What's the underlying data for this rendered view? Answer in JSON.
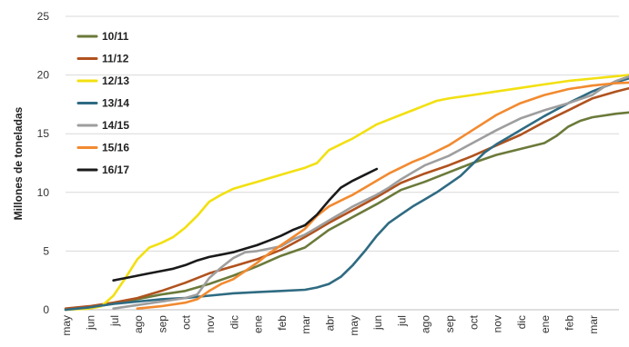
{
  "chart_data": {
    "type": "line",
    "ylabel": "Millones de toneladas",
    "ylim": [
      0,
      25
    ],
    "yticks": [
      0,
      5,
      10,
      15,
      20,
      25
    ],
    "grid": true,
    "legend_position": "top-left",
    "months": [
      "may",
      "jun",
      "jul",
      "ago",
      "sep",
      "oct",
      "nov",
      "dic",
      "ene",
      "feb",
      "mar",
      "abr",
      "may",
      "jun",
      "jul",
      "ago",
      "sep",
      "oct",
      "nov",
      "dic",
      "ene",
      "feb",
      "mar"
    ],
    "series": [
      {
        "name": "10/11",
        "color": "#6b7a3a",
        "points": [
          [
            0,
            0
          ],
          [
            1,
            0.2
          ],
          [
            2,
            0.5
          ],
          [
            3,
            0.9
          ],
          [
            4,
            1.3
          ],
          [
            5,
            1.6
          ],
          [
            6,
            2.2
          ],
          [
            7,
            2.9
          ],
          [
            8,
            3.7
          ],
          [
            9,
            4.6
          ],
          [
            10,
            5.3
          ],
          [
            11,
            6.8
          ],
          [
            12,
            7.9
          ],
          [
            13,
            9.0
          ],
          [
            14,
            10.2
          ],
          [
            15,
            10.9
          ],
          [
            16,
            11.7
          ],
          [
            17,
            12.5
          ],
          [
            18,
            13.2
          ],
          [
            19,
            13.7
          ],
          [
            20,
            14.2
          ],
          [
            20.5,
            14.8
          ],
          [
            21,
            15.6
          ],
          [
            21.5,
            16.1
          ],
          [
            22,
            16.4
          ],
          [
            23,
            16.7
          ],
          [
            24,
            16.9
          ]
        ]
      },
      {
        "name": "11/12",
        "color": "#b0521e",
        "points": [
          [
            0,
            0.1
          ],
          [
            1,
            0.3
          ],
          [
            2,
            0.6
          ],
          [
            3,
            1.0
          ],
          [
            4,
            1.6
          ],
          [
            5,
            2.3
          ],
          [
            6,
            3.1
          ],
          [
            7,
            3.7
          ],
          [
            8,
            4.3
          ],
          [
            9,
            5.1
          ],
          [
            10,
            6.2
          ],
          [
            11,
            7.4
          ],
          [
            12,
            8.5
          ],
          [
            13,
            9.6
          ],
          [
            14,
            10.8
          ],
          [
            15,
            11.6
          ],
          [
            16,
            12.3
          ],
          [
            17,
            13.1
          ],
          [
            18,
            14.0
          ],
          [
            19,
            14.9
          ],
          [
            20,
            16.0
          ],
          [
            21,
            17.0
          ],
          [
            22,
            18.0
          ],
          [
            23,
            18.6
          ],
          [
            24,
            19.1
          ],
          [
            25,
            19.4
          ],
          [
            26,
            19.5
          ]
        ]
      },
      {
        "name": "12/13",
        "color": "#f2e011",
        "points": [
          [
            0,
            0
          ],
          [
            1,
            0.1
          ],
          [
            1.5,
            0.3
          ],
          [
            2,
            1.2
          ],
          [
            2.5,
            2.7
          ],
          [
            3,
            4.3
          ],
          [
            3.5,
            5.3
          ],
          [
            4,
            5.7
          ],
          [
            4.5,
            6.2
          ],
          [
            5,
            7.0
          ],
          [
            5.5,
            8.0
          ],
          [
            6,
            9.2
          ],
          [
            6.5,
            9.8
          ],
          [
            7,
            10.3
          ],
          [
            7.5,
            10.6
          ],
          [
            8,
            10.9
          ],
          [
            8.5,
            11.2
          ],
          [
            9,
            11.5
          ],
          [
            9.5,
            11.8
          ],
          [
            10,
            12.1
          ],
          [
            10.5,
            12.5
          ],
          [
            11,
            13.6
          ],
          [
            11.5,
            14.1
          ],
          [
            12,
            14.6
          ],
          [
            12.5,
            15.2
          ],
          [
            13,
            15.8
          ],
          [
            13.5,
            16.2
          ],
          [
            14,
            16.6
          ],
          [
            14.5,
            17.0
          ],
          [
            15,
            17.4
          ],
          [
            15.5,
            17.8
          ],
          [
            16,
            18.0
          ],
          [
            17,
            18.3
          ],
          [
            18,
            18.6
          ],
          [
            19,
            18.9
          ],
          [
            20,
            19.2
          ],
          [
            21,
            19.5
          ],
          [
            22,
            19.7
          ],
          [
            23,
            19.9
          ],
          [
            24,
            20.1
          ],
          [
            25,
            20.2
          ],
          [
            26,
            20.3
          ]
        ]
      },
      {
        "name": "13/14",
        "color": "#2f6b82",
        "points": [
          [
            0,
            0
          ],
          [
            1,
            0.2
          ],
          [
            2,
            0.5
          ],
          [
            3,
            0.7
          ],
          [
            4,
            0.9
          ],
          [
            5,
            1.0
          ],
          [
            6,
            1.2
          ],
          [
            7,
            1.4
          ],
          [
            8,
            1.5
          ],
          [
            9,
            1.6
          ],
          [
            10,
            1.7
          ],
          [
            10.5,
            1.9
          ],
          [
            11,
            2.2
          ],
          [
            11.5,
            2.8
          ],
          [
            12,
            3.8
          ],
          [
            12.5,
            5.0
          ],
          [
            13,
            6.3
          ],
          [
            13.5,
            7.4
          ],
          [
            14,
            8.1
          ],
          [
            14.5,
            8.8
          ],
          [
            15,
            9.4
          ],
          [
            15.5,
            10.0
          ],
          [
            16,
            10.7
          ],
          [
            16.5,
            11.4
          ],
          [
            17,
            12.4
          ],
          [
            17.5,
            13.4
          ],
          [
            18,
            14.1
          ],
          [
            18.5,
            14.7
          ],
          [
            19,
            15.3
          ],
          [
            20,
            16.5
          ],
          [
            21,
            17.6
          ],
          [
            22,
            18.6
          ],
          [
            23,
            19.4
          ],
          [
            24,
            20.0
          ],
          [
            25,
            20.6
          ],
          [
            26,
            21.0
          ]
        ]
      },
      {
        "name": "14/15",
        "color": "#9e9e9e",
        "points": [
          [
            2,
            0.1
          ],
          [
            3,
            0.4
          ],
          [
            4,
            0.7
          ],
          [
            5,
            1.0
          ],
          [
            5.5,
            1.3
          ],
          [
            6,
            2.7
          ],
          [
            6.5,
            3.6
          ],
          [
            7,
            4.4
          ],
          [
            7.5,
            4.9
          ],
          [
            8,
            5.0
          ],
          [
            9,
            5.4
          ],
          [
            9.5,
            6.0
          ],
          [
            10,
            6.4
          ],
          [
            10.5,
            7.0
          ],
          [
            11,
            7.6
          ],
          [
            11.5,
            8.2
          ],
          [
            12,
            8.8
          ],
          [
            12.5,
            9.3
          ],
          [
            13,
            9.8
          ],
          [
            13.5,
            10.4
          ],
          [
            14,
            11.1
          ],
          [
            14.5,
            11.7
          ],
          [
            15,
            12.3
          ],
          [
            16,
            13.1
          ],
          [
            17,
            14.2
          ],
          [
            18,
            15.3
          ],
          [
            19,
            16.3
          ],
          [
            20,
            17.0
          ],
          [
            21,
            17.6
          ],
          [
            22,
            18.3
          ],
          [
            22.5,
            19.0
          ],
          [
            23,
            19.5
          ],
          [
            24,
            20.2
          ],
          [
            25,
            20.6
          ],
          [
            26,
            21.0
          ]
        ]
      },
      {
        "name": "15/16",
        "color": "#f28a30",
        "points": [
          [
            3,
            0.1
          ],
          [
            4,
            0.3
          ],
          [
            5,
            0.6
          ],
          [
            5.5,
            0.9
          ],
          [
            6,
            1.6
          ],
          [
            6.5,
            2.2
          ],
          [
            7,
            2.6
          ],
          [
            7.5,
            3.3
          ],
          [
            8,
            4.0
          ],
          [
            8.5,
            4.8
          ],
          [
            9,
            5.5
          ],
          [
            9.5,
            6.2
          ],
          [
            10,
            6.9
          ],
          [
            10.5,
            8.0
          ],
          [
            11,
            8.8
          ],
          [
            11.5,
            9.3
          ],
          [
            12,
            9.8
          ],
          [
            12.5,
            10.4
          ],
          [
            13,
            11.0
          ],
          [
            13.5,
            11.6
          ],
          [
            14,
            12.1
          ],
          [
            14.5,
            12.6
          ],
          [
            15,
            13.0
          ],
          [
            16,
            14.0
          ],
          [
            17,
            15.3
          ],
          [
            18,
            16.6
          ],
          [
            19,
            17.6
          ],
          [
            20,
            18.3
          ],
          [
            21,
            18.8
          ],
          [
            22,
            19.1
          ],
          [
            23,
            19.3
          ],
          [
            24,
            19.4
          ],
          [
            25,
            19.5
          ],
          [
            26,
            19.6
          ]
        ]
      },
      {
        "name": "16/17",
        "color": "#1a1a1a",
        "points": [
          [
            2,
            2.5
          ],
          [
            2.5,
            2.7
          ],
          [
            3,
            2.9
          ],
          [
            3.5,
            3.1
          ],
          [
            4,
            3.3
          ],
          [
            4.5,
            3.5
          ],
          [
            5,
            3.8
          ],
          [
            5.5,
            4.2
          ],
          [
            6,
            4.5
          ],
          [
            6.5,
            4.7
          ],
          [
            7,
            4.9
          ],
          [
            7.5,
            5.2
          ],
          [
            8,
            5.5
          ],
          [
            8.5,
            5.9
          ],
          [
            9,
            6.3
          ],
          [
            9.5,
            6.8
          ],
          [
            10,
            7.2
          ],
          [
            10.5,
            8.1
          ],
          [
            11,
            9.3
          ],
          [
            11.5,
            10.4
          ],
          [
            12,
            11.0
          ],
          [
            12.5,
            11.5
          ],
          [
            13,
            12.0
          ]
        ]
      }
    ]
  }
}
